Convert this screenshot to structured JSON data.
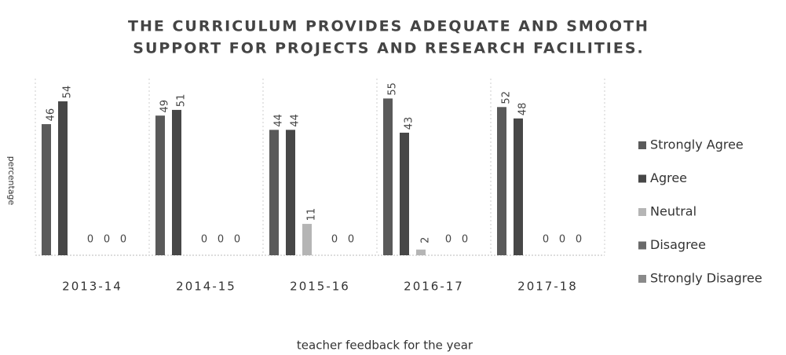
{
  "chart_data": {
    "type": "bar",
    "title": [
      "THE CURRICULUM PROVIDES ADEQUATE AND SMOOTH",
      "SUPPORT FOR PROJECTS AND RESEARCH FACILITIES."
    ],
    "x_label": "teacher feedback for the year",
    "y_label": "percentage",
    "categories": [
      "2013-14",
      "2014-15",
      "2015-16",
      "2016-17",
      "2017-18"
    ],
    "series": [
      {
        "name": "Strongly Agree",
        "color": "#5a5a5a",
        "values": [
          46,
          49,
          44,
          55,
          52
        ]
      },
      {
        "name": "Agree",
        "color": "#474747",
        "values": [
          54,
          51,
          44,
          43,
          48
        ]
      },
      {
        "name": "Neutral",
        "color": "#b5b5b5",
        "values": [
          0,
          0,
          11,
          2,
          0
        ]
      },
      {
        "name": "Disagree",
        "color": "#6a6a6a",
        "values": [
          0,
          0,
          0,
          0,
          0
        ]
      },
      {
        "name": "Strongly Disagree",
        "color": "#8a8a8a",
        "values": [
          0,
          0,
          0,
          0,
          0
        ]
      }
    ],
    "ylim": [
      0,
      62
    ],
    "legend": "right"
  }
}
